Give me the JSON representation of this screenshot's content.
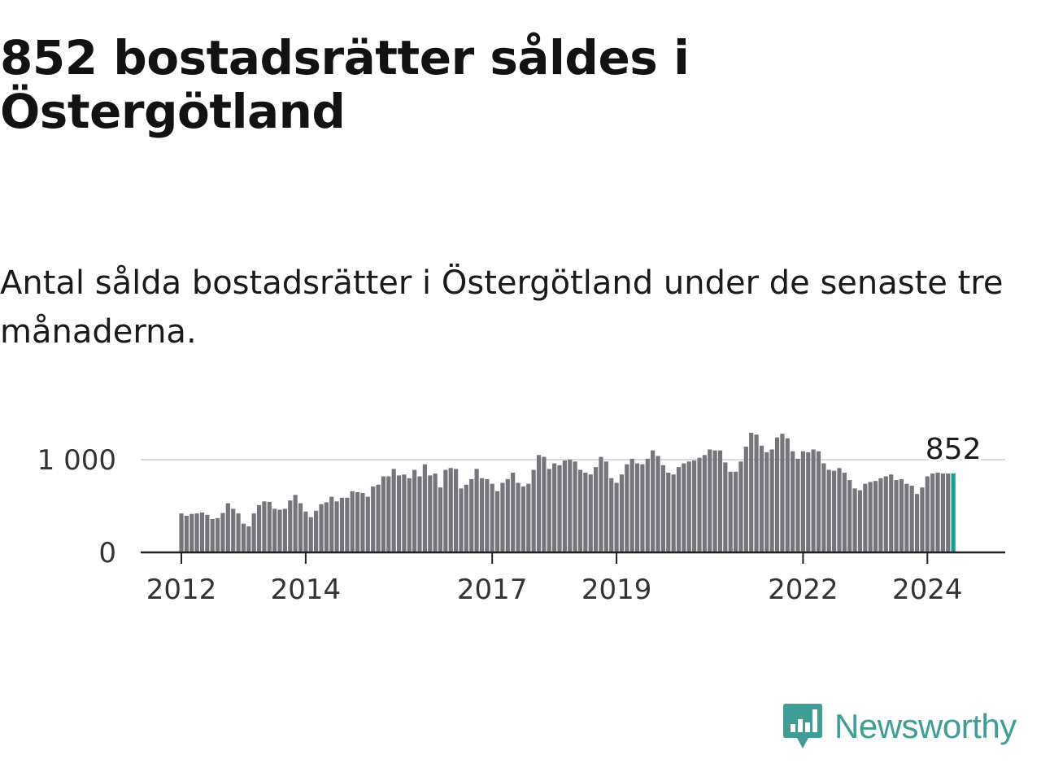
{
  "title": "852 bostadsrätter såldes i Östergötland",
  "subtitle": "Antal sålda bostadsrätter i Östergötland under de senaste tre månaderna.",
  "logo": {
    "text": "Newsworthy",
    "color": "#3e9e96",
    "icon": "newsworthy-logo-icon"
  },
  "chart_data": {
    "type": "bar",
    "x_start": "2012-01",
    "frequency": "monthly",
    "x_ticks": [
      "2012",
      "2014",
      "2017",
      "2019",
      "2022",
      "2024"
    ],
    "y_ticks": [
      "0",
      "1 000"
    ],
    "ylim": [
      0,
      1400
    ],
    "grid": true,
    "bar_color": "#76757c",
    "highlight_color": "#1a9e8f",
    "annotation": {
      "label": "852",
      "value": 852
    },
    "values": [
      420,
      395,
      415,
      420,
      430,
      405,
      360,
      370,
      425,
      530,
      470,
      420,
      310,
      280,
      420,
      510,
      550,
      545,
      470,
      460,
      470,
      560,
      620,
      530,
      440,
      380,
      450,
      520,
      540,
      600,
      550,
      590,
      590,
      660,
      650,
      640,
      600,
      710,
      730,
      820,
      820,
      900,
      830,
      840,
      800,
      890,
      820,
      950,
      830,
      850,
      700,
      890,
      910,
      900,
      690,
      730,
      790,
      900,
      800,
      790,
      740,
      660,
      750,
      790,
      860,
      750,
      710,
      740,
      890,
      1050,
      1030,
      900,
      960,
      940,
      990,
      1000,
      980,
      890,
      860,
      840,
      920,
      1030,
      980,
      800,
      750,
      840,
      950,
      1010,
      960,
      950,
      1010,
      1100,
      1040,
      940,
      860,
      840,
      920,
      960,
      980,
      990,
      1020,
      1050,
      1110,
      1100,
      1100,
      970,
      870,
      870,
      980,
      1140,
      1290,
      1270,
      1150,
      1080,
      1110,
      1240,
      1280,
      1230,
      1090,
      1010,
      1090,
      1080,
      1110,
      1090,
      960,
      890,
      880,
      910,
      860,
      780,
      690,
      670,
      740,
      760,
      770,
      800,
      820,
      840,
      780,
      790,
      740,
      720,
      630,
      700,
      820,
      850,
      860,
      850,
      850,
      852
    ]
  }
}
